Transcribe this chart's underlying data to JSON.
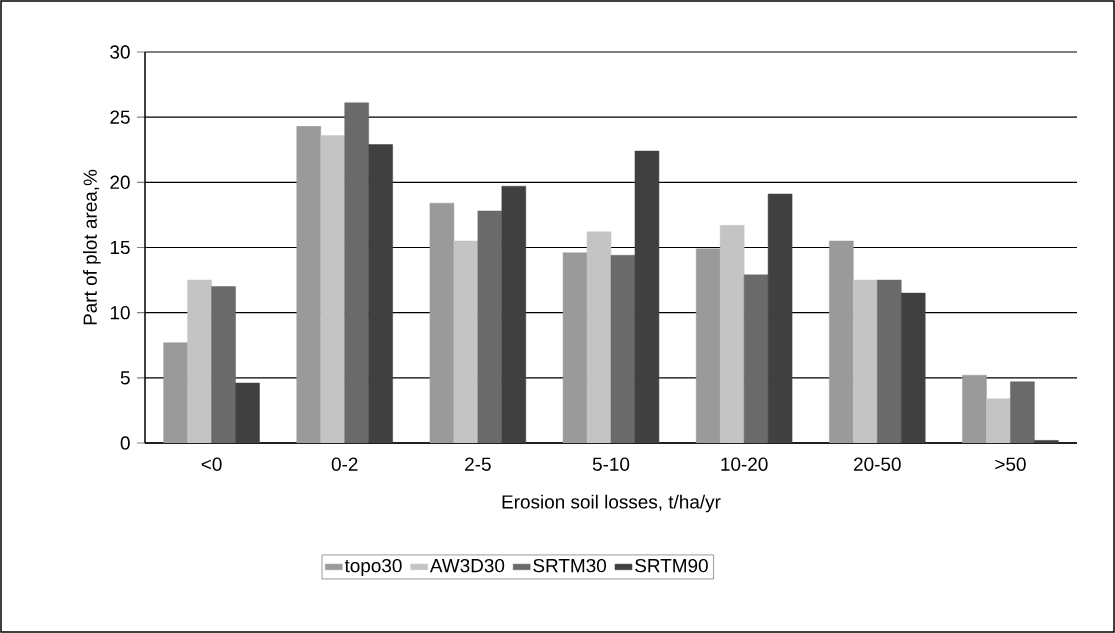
{
  "chart_data": {
    "type": "bar",
    "xlabel": "Erosion soil losses, t/ha/yr",
    "ylabel": "Part of plot area,%",
    "categories": [
      "<0",
      "0-2",
      "2-5",
      "5-10",
      "10-20",
      "20-50",
      ">50"
    ],
    "series": [
      {
        "name": "topo30",
        "color": "#9a9a9a",
        "values": [
          7.7,
          24.3,
          18.4,
          14.6,
          14.9,
          15.5,
          5.2
        ]
      },
      {
        "name": "AW3D30",
        "color": "#c4c4c4",
        "values": [
          12.5,
          23.6,
          15.5,
          16.2,
          16.7,
          12.5,
          3.4
        ]
      },
      {
        "name": "SRTM30",
        "color": "#6a6a6a",
        "values": [
          12.0,
          26.1,
          17.8,
          14.4,
          12.9,
          12.5,
          4.7
        ]
      },
      {
        "name": "SRTM90",
        "color": "#404040",
        "values": [
          4.6,
          22.9,
          19.7,
          22.4,
          19.1,
          11.5,
          0.2
        ]
      }
    ],
    "ylim": [
      0,
      30
    ],
    "yticks": [
      0,
      5,
      10,
      15,
      20,
      25,
      30
    ],
    "grid": "y",
    "legend": "bottom"
  }
}
